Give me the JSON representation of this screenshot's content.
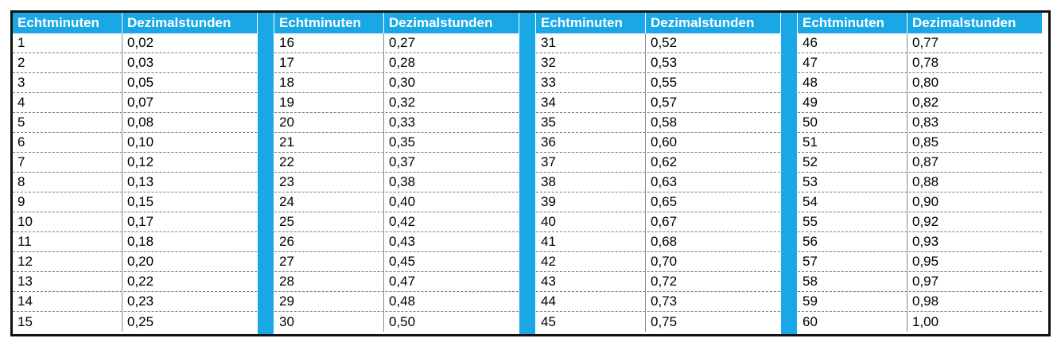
{
  "headers": {
    "minutes": "Echtminuten",
    "decimal": "Dezimalstunden"
  },
  "colors": {
    "header_bg": "#1aa7e6",
    "header_text": "#ffffff",
    "border": "#111111"
  },
  "groups": [
    {
      "rows": [
        {
          "min": "1",
          "dec": "0,02"
        },
        {
          "min": "2",
          "dec": "0,03"
        },
        {
          "min": "3",
          "dec": "0,05"
        },
        {
          "min": "4",
          "dec": "0,07"
        },
        {
          "min": "5",
          "dec": "0,08"
        },
        {
          "min": "6",
          "dec": "0,10"
        },
        {
          "min": "7",
          "dec": "0,12"
        },
        {
          "min": "8",
          "dec": "0,13"
        },
        {
          "min": "9",
          "dec": "0,15"
        },
        {
          "min": "10",
          "dec": "0,17"
        },
        {
          "min": "11",
          "dec": "0,18"
        },
        {
          "min": "12",
          "dec": "0,20"
        },
        {
          "min": "13",
          "dec": "0,22"
        },
        {
          "min": "14",
          "dec": "0,23"
        },
        {
          "min": "15",
          "dec": "0,25"
        }
      ]
    },
    {
      "rows": [
        {
          "min": "16",
          "dec": "0,27"
        },
        {
          "min": "17",
          "dec": "0,28"
        },
        {
          "min": "18",
          "dec": "0,30"
        },
        {
          "min": "19",
          "dec": "0,32"
        },
        {
          "min": "20",
          "dec": "0,33"
        },
        {
          "min": "21",
          "dec": "0,35"
        },
        {
          "min": "22",
          "dec": "0,37"
        },
        {
          "min": "23",
          "dec": "0,38"
        },
        {
          "min": "24",
          "dec": "0,40"
        },
        {
          "min": "25",
          "dec": "0,42"
        },
        {
          "min": "26",
          "dec": "0,43"
        },
        {
          "min": "27",
          "dec": "0,45"
        },
        {
          "min": "28",
          "dec": "0,47"
        },
        {
          "min": "29",
          "dec": "0,48"
        },
        {
          "min": "30",
          "dec": "0,50"
        }
      ]
    },
    {
      "rows": [
        {
          "min": "31",
          "dec": "0,52"
        },
        {
          "min": "32",
          "dec": "0,53"
        },
        {
          "min": "33",
          "dec": "0,55"
        },
        {
          "min": "34",
          "dec": "0,57"
        },
        {
          "min": "35",
          "dec": "0,58"
        },
        {
          "min": "36",
          "dec": "0,60"
        },
        {
          "min": "37",
          "dec": "0,62"
        },
        {
          "min": "38",
          "dec": "0,63"
        },
        {
          "min": "39",
          "dec": "0,65"
        },
        {
          "min": "40",
          "dec": "0,67"
        },
        {
          "min": "41",
          "dec": "0,68"
        },
        {
          "min": "42",
          "dec": "0,70"
        },
        {
          "min": "43",
          "dec": "0,72"
        },
        {
          "min": "44",
          "dec": "0,73"
        },
        {
          "min": "45",
          "dec": "0,75"
        }
      ]
    },
    {
      "rows": [
        {
          "min": "46",
          "dec": "0,77"
        },
        {
          "min": "47",
          "dec": "0,78"
        },
        {
          "min": "48",
          "dec": "0,80"
        },
        {
          "min": "49",
          "dec": "0,82"
        },
        {
          "min": "50",
          "dec": "0,83"
        },
        {
          "min": "51",
          "dec": "0,85"
        },
        {
          "min": "52",
          "dec": "0,87"
        },
        {
          "min": "53",
          "dec": "0,88"
        },
        {
          "min": "54",
          "dec": "0,90"
        },
        {
          "min": "55",
          "dec": "0,92"
        },
        {
          "min": "56",
          "dec": "0,93"
        },
        {
          "min": "57",
          "dec": "0,95"
        },
        {
          "min": "58",
          "dec": "0,97"
        },
        {
          "min": "59",
          "dec": "0,98"
        },
        {
          "min": "60",
          "dec": "1,00"
        }
      ]
    }
  ]
}
